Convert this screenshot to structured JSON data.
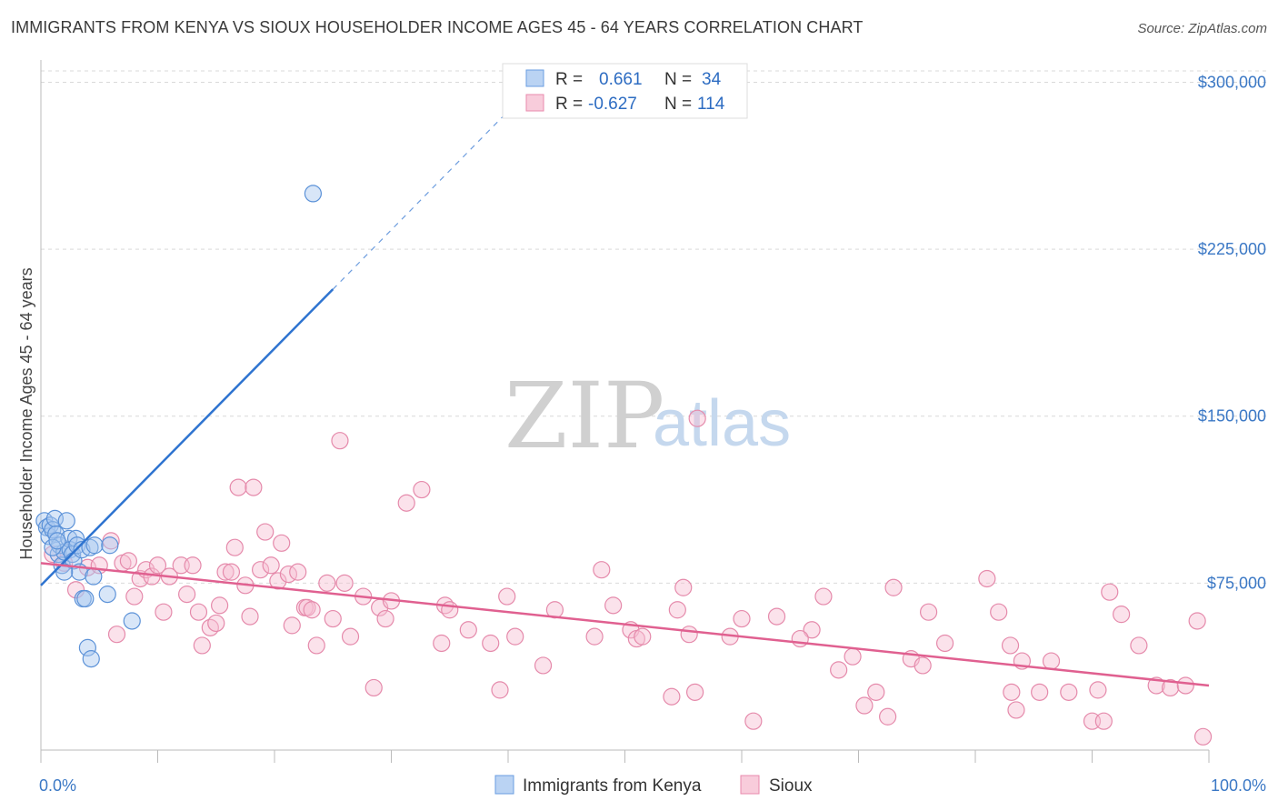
{
  "title": "IMMIGRANTS FROM KENYA VS SIOUX HOUSEHOLDER INCOME AGES 45 - 64 YEARS CORRELATION CHART",
  "source": "Source: ZipAtlas.com",
  "watermark": {
    "zip": "ZIP",
    "atlas": "atlas"
  },
  "stats": [
    {
      "r_label": "R =",
      "r_value": "0.661",
      "n_label": "N =",
      "n_value": "34",
      "color": "#a9c8f0",
      "stroke": "#6a9ee0"
    },
    {
      "r_label": "R =",
      "r_value": "-0.627",
      "n_label": "N =",
      "n_value": "114",
      "color": "#f6bfd2",
      "stroke": "#e98aad"
    }
  ],
  "chart_data": {
    "type": "scatter",
    "ylabel": "Householder Income Ages 45 - 64 years",
    "x_ticks": [
      "0.0%",
      "100.0%"
    ],
    "y_ticks": [
      "$75,000",
      "$150,000",
      "$225,000",
      "$300,000"
    ],
    "y_tick_values": [
      75000,
      150000,
      225000,
      300000
    ],
    "xlim": [
      0,
      100
    ],
    "ylim": [
      0,
      310000
    ],
    "grid": true,
    "legend_position": "bottom-center",
    "series": [
      {
        "name": "Immigrants from Kenya",
        "color": "#a9c8f0",
        "stroke": "#5c92d8",
        "trend_color": "#2f74d0",
        "trend": {
          "x0": 0,
          "y0": 74000,
          "x1": 25,
          "y1": 207000,
          "dash_to_x": 40,
          "dash_to_y": 287000
        },
        "points": [
          [
            0.3,
            103000
          ],
          [
            0.5,
            100000
          ],
          [
            0.7,
            96000
          ],
          [
            0.8,
            101000
          ],
          [
            1.0,
            99000
          ],
          [
            1.2,
            104000
          ],
          [
            1.3,
            97000
          ],
          [
            1.5,
            88000
          ],
          [
            1.6,
            92000
          ],
          [
            1.8,
            83000
          ],
          [
            2.0,
            89000
          ],
          [
            2.2,
            103000
          ],
          [
            2.4,
            95000
          ],
          [
            2.5,
            90000
          ],
          [
            2.7,
            88000
          ],
          [
            2.8,
            85000
          ],
          [
            3.0,
            95000
          ],
          [
            3.1,
            92000
          ],
          [
            3.3,
            80000
          ],
          [
            3.5,
            90000
          ],
          [
            3.6,
            68000
          ],
          [
            3.8,
            68000
          ],
          [
            4.0,
            46000
          ],
          [
            4.2,
            91000
          ],
          [
            4.3,
            41000
          ],
          [
            4.5,
            78000
          ],
          [
            4.6,
            92000
          ],
          [
            5.7,
            70000
          ],
          [
            5.9,
            92000
          ],
          [
            7.8,
            58000
          ],
          [
            23.3,
            250000
          ],
          [
            1.0,
            91000
          ],
          [
            2.0,
            80000
          ],
          [
            1.4,
            94000
          ]
        ]
      },
      {
        "name": "Sioux",
        "color": "#f6bfd2",
        "stroke": "#e58aab",
        "trend_color": "#e06090",
        "trend": {
          "x0": 0,
          "y0": 84000,
          "x1": 100,
          "y1": 29000
        },
        "points": [
          [
            1.0,
            88000
          ],
          [
            2.0,
            84000
          ],
          [
            3.0,
            72000
          ],
          [
            4.0,
            82000
          ],
          [
            5.0,
            83000
          ],
          [
            6.0,
            94000
          ],
          [
            6.5,
            52000
          ],
          [
            7.0,
            84000
          ],
          [
            7.5,
            85000
          ],
          [
            8.0,
            69000
          ],
          [
            8.5,
            77000
          ],
          [
            9.0,
            81000
          ],
          [
            9.5,
            78000
          ],
          [
            10.0,
            83000
          ],
          [
            10.5,
            62000
          ],
          [
            11.0,
            78000
          ],
          [
            12.0,
            83000
          ],
          [
            12.5,
            70000
          ],
          [
            13.0,
            83000
          ],
          [
            13.5,
            62000
          ],
          [
            13.8,
            47000
          ],
          [
            14.5,
            55000
          ],
          [
            15.0,
            57000
          ],
          [
            15.3,
            65000
          ],
          [
            15.8,
            80000
          ],
          [
            16.3,
            80000
          ],
          [
            16.6,
            91000
          ],
          [
            16.9,
            118000
          ],
          [
            17.5,
            74000
          ],
          [
            17.9,
            60000
          ],
          [
            18.2,
            118000
          ],
          [
            18.8,
            81000
          ],
          [
            19.2,
            98000
          ],
          [
            19.7,
            83000
          ],
          [
            20.3,
            76000
          ],
          [
            20.6,
            93000
          ],
          [
            21.2,
            79000
          ],
          [
            21.5,
            56000
          ],
          [
            22.0,
            80000
          ],
          [
            22.6,
            64000
          ],
          [
            22.8,
            64000
          ],
          [
            23.2,
            63000
          ],
          [
            23.6,
            47000
          ],
          [
            24.5,
            75000
          ],
          [
            25.0,
            59000
          ],
          [
            25.6,
            139000
          ],
          [
            26.0,
            75000
          ],
          [
            26.5,
            51000
          ],
          [
            27.6,
            69000
          ],
          [
            28.5,
            28000
          ],
          [
            29.0,
            64000
          ],
          [
            29.5,
            59000
          ],
          [
            30.0,
            67000
          ],
          [
            31.3,
            111000
          ],
          [
            32.6,
            117000
          ],
          [
            34.3,
            48000
          ],
          [
            34.6,
            65000
          ],
          [
            35.0,
            63000
          ],
          [
            36.6,
            54000
          ],
          [
            38.5,
            48000
          ],
          [
            39.3,
            27000
          ],
          [
            39.9,
            69000
          ],
          [
            40.6,
            51000
          ],
          [
            43.0,
            38000
          ],
          [
            44.0,
            63000
          ],
          [
            47.4,
            51000
          ],
          [
            48.0,
            81000
          ],
          [
            49.0,
            65000
          ],
          [
            50.5,
            54000
          ],
          [
            51.0,
            50000
          ],
          [
            51.5,
            51000
          ],
          [
            54.0,
            24000
          ],
          [
            55.0,
            73000
          ],
          [
            55.5,
            52000
          ],
          [
            56.0,
            26000
          ],
          [
            56.2,
            149000
          ],
          [
            59.0,
            51000
          ],
          [
            60.0,
            59000
          ],
          [
            61.0,
            13000
          ],
          [
            63.0,
            60000
          ],
          [
            66.0,
            54000
          ],
          [
            67.0,
            69000
          ],
          [
            68.3,
            36000
          ],
          [
            69.5,
            42000
          ],
          [
            70.5,
            20000
          ],
          [
            71.5,
            26000
          ],
          [
            72.5,
            15000
          ],
          [
            73.0,
            73000
          ],
          [
            74.5,
            41000
          ],
          [
            75.5,
            38000
          ],
          [
            77.4,
            48000
          ],
          [
            83.1,
            26000
          ],
          [
            82.0,
            62000
          ],
          [
            83.0,
            47000
          ],
          [
            83.5,
            18000
          ],
          [
            84.0,
            40000
          ],
          [
            85.5,
            26000
          ],
          [
            86.5,
            40000
          ],
          [
            88.0,
            26000
          ],
          [
            90.0,
            13000
          ],
          [
            91.0,
            13000
          ],
          [
            91.5,
            71000
          ],
          [
            90.5,
            27000
          ],
          [
            92.5,
            61000
          ],
          [
            94.0,
            47000
          ],
          [
            95.5,
            29000
          ],
          [
            96.7,
            28000
          ],
          [
            98.0,
            29000
          ],
          [
            99.0,
            58000
          ],
          [
            99.5,
            6000
          ],
          [
            76.0,
            62000
          ],
          [
            81.0,
            77000
          ],
          [
            54.5,
            63000
          ],
          [
            65.0,
            50000
          ]
        ]
      }
    ]
  }
}
